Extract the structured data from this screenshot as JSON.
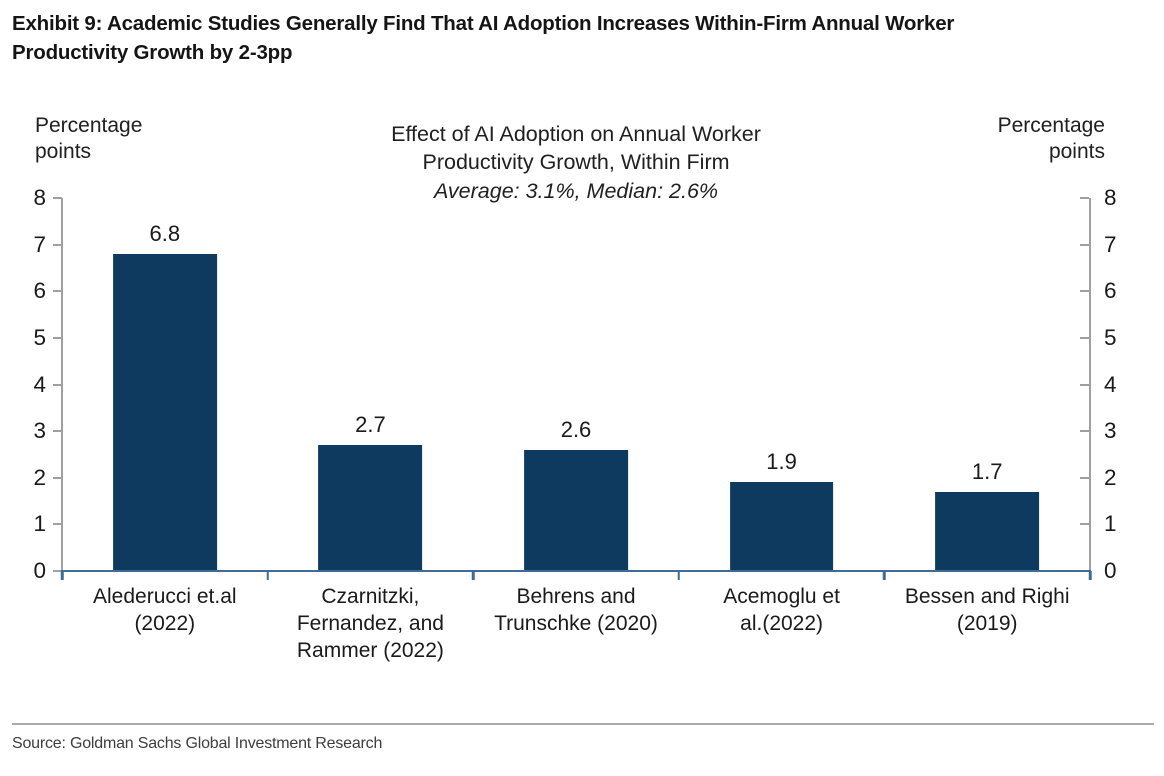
{
  "exhibit": {
    "title": "Exhibit 9: Academic Studies Generally Find That AI Adoption Increases Within-Firm Annual Worker\nProductivity Growth by 2-3pp"
  },
  "chart_data": {
    "type": "bar",
    "title": "Effect of AI Adoption on Annual Worker\nProductivity Growth, Within Firm",
    "subtitle": "Average: 3.1%, Median: 2.6%",
    "ylabel_left": "Percentage\npoints",
    "ylabel_right": "Percentage\npoints",
    "categories": [
      "Alederucci et.al\n(2022)",
      "Czarnitzki,\nFernandez, and\nRammer (2022)",
      "Behrens and\nTrunschke (2020)",
      "Acemoglu et\nal.(2022)",
      "Bessen and Righi\n(2019)"
    ],
    "values": [
      6.8,
      2.7,
      2.6,
      1.9,
      1.7
    ],
    "data_labels": [
      "6.8",
      "2.7",
      "2.6",
      "1.9",
      "1.7"
    ],
    "ylim": [
      0,
      8
    ],
    "yticks": [
      0,
      1,
      2,
      3,
      4,
      5,
      6,
      7,
      8
    ],
    "grid": "off",
    "legend": "none",
    "bar_color": "#0e3a5f",
    "axis_line_color": "#a0a0a0",
    "baseline_color": "#3e6c96"
  },
  "footer": {
    "source": "Source: Goldman Sachs Global Investment Research"
  }
}
